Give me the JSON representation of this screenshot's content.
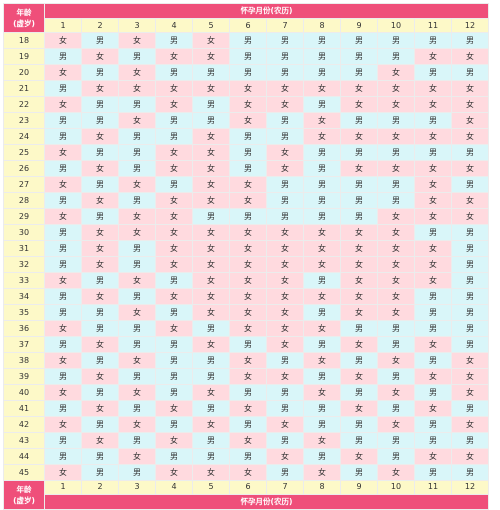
{
  "title_label": "怀孕月份(农历)",
  "age_label_top": "年龄",
  "age_label_bottom": "(虚岁)",
  "months": [
    "1",
    "2",
    "3",
    "4",
    "5",
    "6",
    "7",
    "8",
    "9",
    "10",
    "11",
    "12"
  ],
  "legend": {
    "boy": "男",
    "girl": "女"
  },
  "colors": {
    "boy": "#d9f6f9",
    "girl": "#ffdadf",
    "header": "#ef4f7a",
    "month_row": "#fdf9c8",
    "age_text": "#c0243a"
  },
  "rows": [
    {
      "age": "18",
      "cells": [
        "女",
        "男",
        "女",
        "男",
        "女",
        "男",
        "男",
        "男",
        "男",
        "男",
        "男",
        "男"
      ]
    },
    {
      "age": "19",
      "cells": [
        "男",
        "女",
        "男",
        "女",
        "女",
        "男",
        "男",
        "男",
        "男",
        "男",
        "女",
        "女"
      ]
    },
    {
      "age": "20",
      "cells": [
        "女",
        "男",
        "女",
        "男",
        "男",
        "男",
        "男",
        "男",
        "男",
        "女",
        "男",
        "男"
      ]
    },
    {
      "age": "21",
      "cells": [
        "男",
        "女",
        "女",
        "女",
        "女",
        "女",
        "女",
        "女",
        "女",
        "女",
        "女",
        "女"
      ]
    },
    {
      "age": "22",
      "cells": [
        "女",
        "男",
        "男",
        "女",
        "男",
        "女",
        "女",
        "男",
        "女",
        "女",
        "女",
        "女"
      ]
    },
    {
      "age": "23",
      "cells": [
        "男",
        "男",
        "女",
        "男",
        "男",
        "女",
        "男",
        "女",
        "男",
        "男",
        "男",
        "女"
      ]
    },
    {
      "age": "24",
      "cells": [
        "男",
        "女",
        "男",
        "男",
        "女",
        "男",
        "男",
        "女",
        "女",
        "女",
        "女",
        "女"
      ]
    },
    {
      "age": "25",
      "cells": [
        "女",
        "男",
        "男",
        "女",
        "女",
        "男",
        "女",
        "男",
        "男",
        "男",
        "男",
        "男"
      ]
    },
    {
      "age": "26",
      "cells": [
        "男",
        "女",
        "男",
        "女",
        "女",
        "男",
        "女",
        "男",
        "女",
        "女",
        "女",
        "女"
      ]
    },
    {
      "age": "27",
      "cells": [
        "女",
        "男",
        "女",
        "男",
        "女",
        "女",
        "男",
        "男",
        "男",
        "男",
        "女",
        "男"
      ]
    },
    {
      "age": "28",
      "cells": [
        "男",
        "女",
        "男",
        "女",
        "女",
        "女",
        "男",
        "男",
        "男",
        "男",
        "女",
        "女"
      ]
    },
    {
      "age": "29",
      "cells": [
        "女",
        "男",
        "女",
        "女",
        "男",
        "男",
        "男",
        "男",
        "男",
        "女",
        "女",
        "女"
      ]
    },
    {
      "age": "30",
      "cells": [
        "男",
        "女",
        "女",
        "女",
        "女",
        "女",
        "女",
        "女",
        "女",
        "女",
        "男",
        "男"
      ]
    },
    {
      "age": "31",
      "cells": [
        "男",
        "女",
        "男",
        "女",
        "女",
        "女",
        "女",
        "女",
        "女",
        "女",
        "女",
        "男"
      ]
    },
    {
      "age": "32",
      "cells": [
        "男",
        "女",
        "男",
        "女",
        "女",
        "女",
        "女",
        "女",
        "女",
        "女",
        "女",
        "男"
      ]
    },
    {
      "age": "33",
      "cells": [
        "女",
        "男",
        "女",
        "男",
        "女",
        "女",
        "女",
        "男",
        "女",
        "女",
        "女",
        "男"
      ]
    },
    {
      "age": "34",
      "cells": [
        "男",
        "女",
        "男",
        "女",
        "女",
        "女",
        "女",
        "女",
        "女",
        "女",
        "男",
        "男"
      ]
    },
    {
      "age": "35",
      "cells": [
        "男",
        "男",
        "女",
        "男",
        "女",
        "女",
        "女",
        "男",
        "女",
        "女",
        "男",
        "男"
      ]
    },
    {
      "age": "36",
      "cells": [
        "女",
        "男",
        "男",
        "女",
        "男",
        "女",
        "女",
        "女",
        "男",
        "男",
        "男",
        "男"
      ]
    },
    {
      "age": "37",
      "cells": [
        "男",
        "女",
        "男",
        "男",
        "女",
        "男",
        "女",
        "男",
        "女",
        "男",
        "女",
        "男"
      ]
    },
    {
      "age": "38",
      "cells": [
        "女",
        "男",
        "女",
        "男",
        "男",
        "女",
        "男",
        "女",
        "男",
        "女",
        "男",
        "女"
      ]
    },
    {
      "age": "39",
      "cells": [
        "男",
        "女",
        "男",
        "男",
        "男",
        "女",
        "女",
        "男",
        "女",
        "男",
        "女",
        "女"
      ]
    },
    {
      "age": "40",
      "cells": [
        "女",
        "男",
        "女",
        "男",
        "女",
        "男",
        "男",
        "女",
        "男",
        "女",
        "男",
        "女"
      ]
    },
    {
      "age": "41",
      "cells": [
        "男",
        "女",
        "男",
        "女",
        "男",
        "女",
        "男",
        "男",
        "女",
        "男",
        "女",
        "男"
      ]
    },
    {
      "age": "42",
      "cells": [
        "女",
        "男",
        "女",
        "男",
        "女",
        "男",
        "女",
        "男",
        "男",
        "女",
        "男",
        "女"
      ]
    },
    {
      "age": "43",
      "cells": [
        "男",
        "女",
        "男",
        "女",
        "男",
        "女",
        "男",
        "女",
        "男",
        "男",
        "男",
        "男"
      ]
    },
    {
      "age": "44",
      "cells": [
        "男",
        "男",
        "女",
        "男",
        "男",
        "男",
        "女",
        "男",
        "女",
        "男",
        "女",
        "女"
      ]
    },
    {
      "age": "45",
      "cells": [
        "女",
        "男",
        "男",
        "女",
        "女",
        "女",
        "男",
        "女",
        "男",
        "女",
        "男",
        "男"
      ]
    }
  ]
}
